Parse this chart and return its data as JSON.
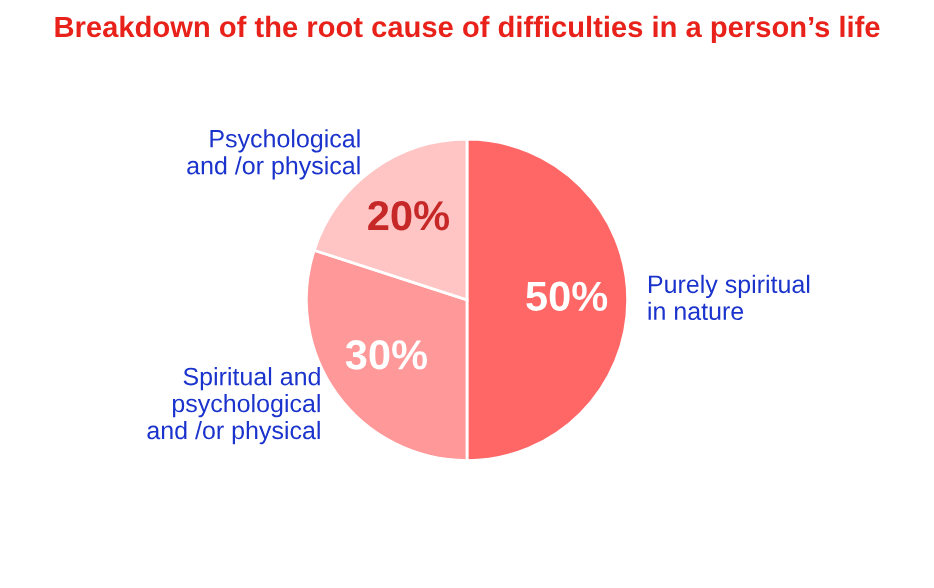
{
  "chart_data": {
    "type": "pie",
    "title": "Breakdown of the root cause of difficulties in a person’s life",
    "categories": [
      "Purely spiritual\nin nature",
      "Spiritual and\npsychological\nand /or physical",
      "Psychological\nand /or physical"
    ],
    "values": [
      50,
      30,
      20
    ],
    "colors": [
      "#ff6666",
      "#ff9999",
      "#ffc4c4"
    ],
    "value_labels": [
      "50%",
      "30%",
      "20%"
    ]
  }
}
